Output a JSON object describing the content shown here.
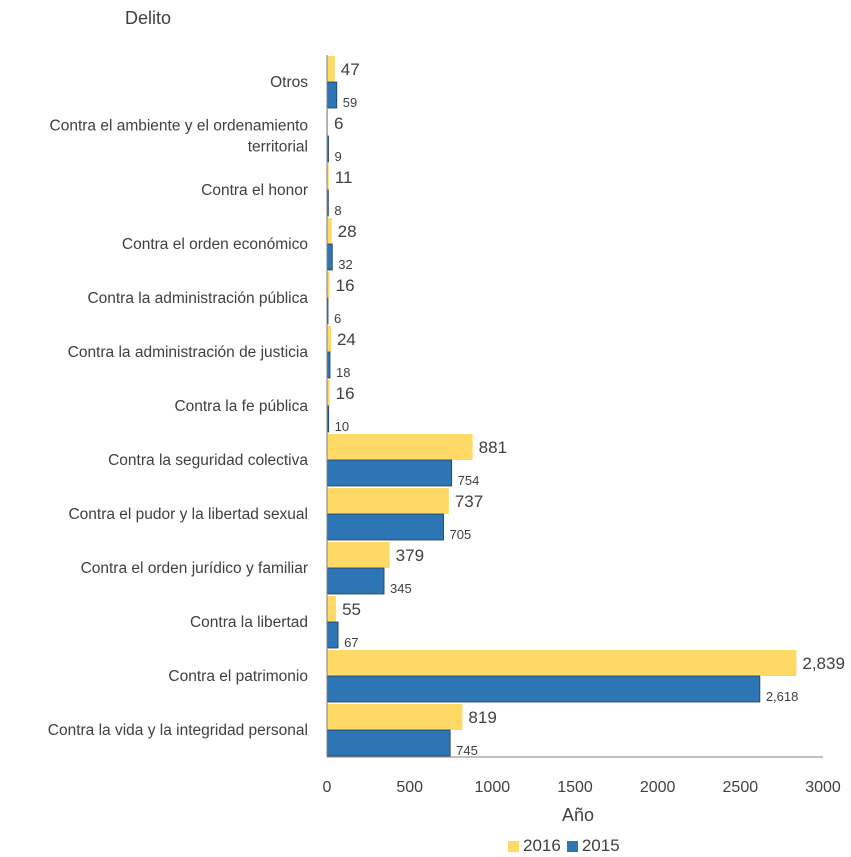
{
  "chart_data": {
    "type": "bar",
    "orientation": "horizontal",
    "ylabel": "Delito",
    "xlabel": "Año",
    "xlim": [
      0,
      3000
    ],
    "xticks": [
      "0",
      "500",
      "1000",
      "1500",
      "2000",
      "2500",
      "3000"
    ],
    "categories": [
      "Otros",
      "Contra el ambiente y el ordenamiento territorial",
      "Contra el honor",
      "Contra el orden económico",
      "Contra la administración pública",
      "Contra la administración de justicia",
      "Contra la fe pública",
      "Contra la seguridad colectiva",
      "Contra el pudor y la libertad sexual",
      "Contra el orden  jurídico  y familiar",
      "Contra la  libertad",
      "Contra el  patrimonio",
      "Contra la vida y  la integridad personal"
    ],
    "category_lines": [
      [
        "Otros"
      ],
      [
        "Contra el ambiente y el ordenamiento",
        "territorial"
      ],
      [
        "Contra el honor"
      ],
      [
        "Contra el orden económico"
      ],
      [
        "Contra la administración pública"
      ],
      [
        "Contra la administración de justicia"
      ],
      [
        "Contra la fe pública"
      ],
      [
        "Contra la seguridad colectiva"
      ],
      [
        "Contra el pudor y la libertad sexual"
      ],
      [
        "Contra el orden  jurídico  y familiar"
      ],
      [
        "Contra la  libertad"
      ],
      [
        "Contra el  patrimonio"
      ],
      [
        "Contra la vida y  la integridad personal"
      ]
    ],
    "series": [
      {
        "name": "2016",
        "color": "#FFD966",
        "values": [
          47,
          6,
          11,
          28,
          16,
          24,
          16,
          881,
          737,
          379,
          55,
          2839,
          819
        ],
        "labels": [
          "47",
          "6",
          "11",
          "28",
          "16",
          "24",
          "16",
          "881",
          "737",
          "379",
          "55",
          "2,839",
          "819"
        ]
      },
      {
        "name": "2015",
        "color": "#2E75B6",
        "values": [
          59,
          9,
          8,
          32,
          6,
          18,
          10,
          754,
          705,
          345,
          67,
          2618,
          745
        ],
        "labels": [
          "59",
          "9",
          "8",
          "32",
          "6",
          "18",
          "10",
          "754",
          "705",
          "345",
          "67",
          "2,618",
          "745"
        ]
      }
    ],
    "grid": false,
    "legend_position": "bottom"
  }
}
